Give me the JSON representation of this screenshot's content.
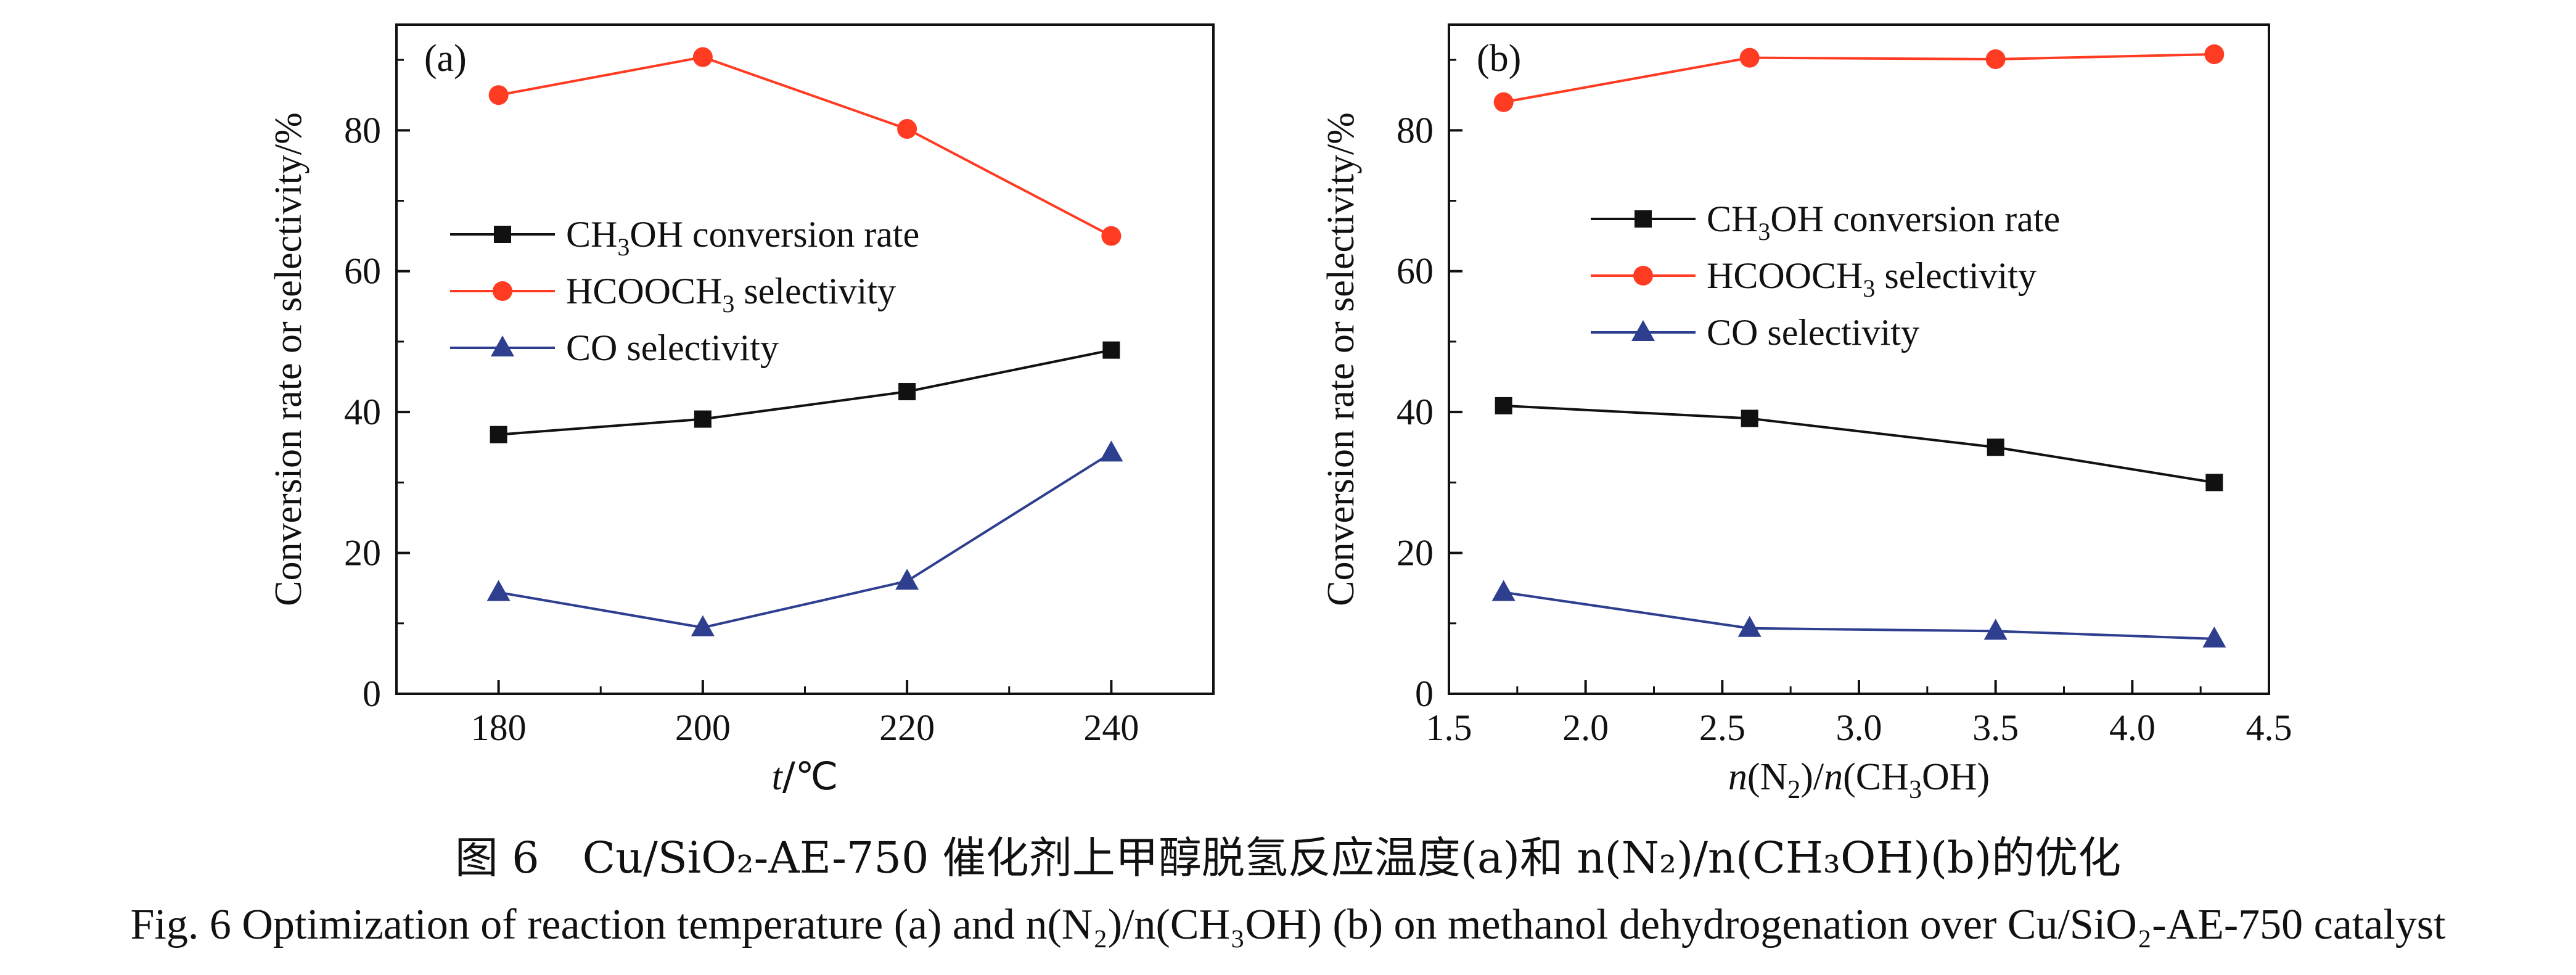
{
  "chart_data": [
    {
      "type": "line",
      "panel_label": "(a)",
      "xlabel_italic": "t",
      "xlabel_rest": "/℃",
      "ylabel": "Conversion rate or selectivity/%",
      "x": [
        180,
        200,
        220,
        240
      ],
      "xlim": [
        170,
        250
      ],
      "ylim": [
        0,
        95
      ],
      "x_ticks": [
        "180",
        "200",
        "220",
        "240"
      ],
      "y_ticks": [
        "0",
        "20",
        "40",
        "60",
        "80"
      ],
      "legend_position": "center-left",
      "grid": false,
      "series": [
        {
          "name_main": "CH",
          "name_sub": "3",
          "name_end": "OH conversion rate",
          "marker": "square",
          "color": "#111111",
          "values": [
            36.8,
            39.0,
            42.9,
            48.8
          ]
        },
        {
          "name_main": "HCOOCH",
          "name_sub": "3",
          "name_end": " selectivity",
          "marker": "circle",
          "color": "#ff3b22",
          "values": [
            85.0,
            90.4,
            80.2,
            65.0
          ]
        },
        {
          "name_main": "CO selectivity",
          "name_sub": "",
          "name_end": "",
          "marker": "triangle",
          "color": "#2e3f8f",
          "values": [
            14.4,
            9.4,
            16.0,
            34.2
          ]
        }
      ]
    },
    {
      "type": "line",
      "panel_label": "(b)",
      "xlabel_parts": [
        "n",
        "(N",
        "2",
        ")/",
        "n",
        "(CH",
        "3",
        "OH)"
      ],
      "ylabel": "Conversion rate or selectivity/%",
      "x": [
        1.7,
        2.6,
        3.5,
        4.3
      ],
      "xlim": [
        1.5,
        4.5
      ],
      "ylim": [
        0,
        95
      ],
      "x_ticks": [
        "1.5",
        "2.0",
        "2.5",
        "3.0",
        "3.5",
        "4.0",
        "4.5"
      ],
      "y_ticks": [
        "0",
        "20",
        "40",
        "60",
        "80"
      ],
      "legend_position": "upper-center",
      "grid": false,
      "series": [
        {
          "name_main": "CH",
          "name_sub": "3",
          "name_end": "OH conversion rate",
          "marker": "square",
          "color": "#111111",
          "values": [
            40.9,
            39.1,
            35.0,
            30.0
          ]
        },
        {
          "name_main": "HCOOCH",
          "name_sub": "3",
          "name_end": " selectivity",
          "marker": "circle",
          "color": "#ff3b22",
          "values": [
            84.0,
            90.3,
            90.1,
            90.8
          ]
        },
        {
          "name_main": "CO selectivity",
          "name_sub": "",
          "name_end": "",
          "marker": "triangle",
          "color": "#2e3f8f",
          "values": [
            14.4,
            9.3,
            8.9,
            7.8
          ]
        }
      ]
    }
  ],
  "caption": {
    "cn": "图 6　Cu/SiO₂-AE-750 催化剂上甲醇脱氢反应温度(a)和 n(N₂)/n(CH₃OH)(b)的优化",
    "en": "Fig. 6  Optimization of reaction temperature (a) and n(N₂)/n(CH₃OH) (b) on methanol dehydrogenation over Cu/SiO₂-AE-750 catalyst"
  }
}
